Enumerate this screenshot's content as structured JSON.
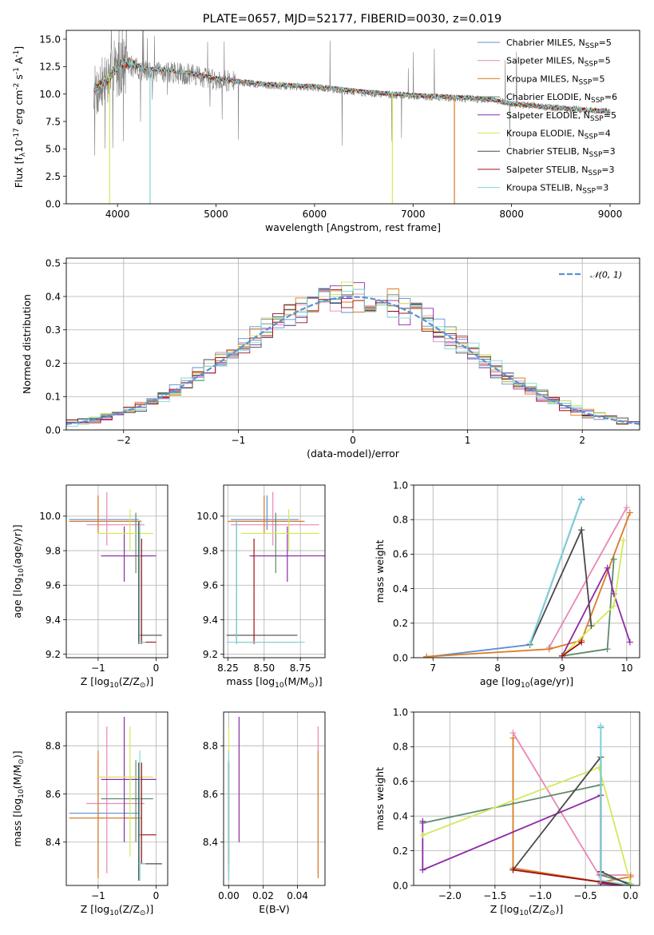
{
  "colors": {
    "Chabrier MILES": "#5b8fd9",
    "Salpeter MILES": "#e887b8",
    "Kroupa MILES": "#d97b24",
    "Chabrier ELODIE": "#5e8b6a",
    "Salpeter ELODIE": "#8e2aa6",
    "Kroupa ELODIE": "#d4e85a",
    "Chabrier STELIB": "#4a4a4a",
    "Salpeter STELIB": "#a01010",
    "Kroupa STELIB": "#7fd6d6",
    "normal": "#5b8fd9",
    "grid": "#b0b0b0"
  },
  "chart_data": [
    {
      "panel": "spectrum",
      "type": "line",
      "title": "PLATE=0657, MJD=52177, FIBERID=0030, z=0.019",
      "xlabel": "wavelength [Angstrom, rest frame]",
      "ylabel": "Flux [f_λ10^{-17} erg cm^{-2} s^{-1} A^{-1}]",
      "xlim": [
        3480,
        9300
      ],
      "ylim": [
        0,
        15.8
      ],
      "xticks": [
        4000,
        5000,
        6000,
        7000,
        8000,
        9000
      ],
      "yticks": [
        0.0,
        2.5,
        5.0,
        7.5,
        10.0,
        12.5,
        15.0
      ],
      "grid": false,
      "legend_position": "top-right",
      "legend": [
        "Chabrier MILES, N_{SSP}=5",
        "Salpeter MILES, N_{SSP}=5",
        "Kroupa MILES, N_{SSP}=5",
        "Chabrier ELODIE, N_{SSP}=6",
        "Salpeter ELODIE, N_{SSP}=5",
        "Kroupa ELODIE, N_{SSP}=4",
        "Chabrier STELIB, N_{SSP}=3",
        "Salpeter STELIB, N_{SSP}=3",
        "Kroupa STELIB, N_{SSP}=3"
      ],
      "data_continuum": [
        [
          3760,
          10.0
        ],
        [
          3850,
          10.8
        ],
        [
          4000,
          12.3
        ],
        [
          4100,
          12.7
        ],
        [
          4300,
          12.0
        ],
        [
          4500,
          12.0
        ],
        [
          4800,
          11.7
        ],
        [
          5000,
          11.3
        ],
        [
          5500,
          10.8
        ],
        [
          6000,
          10.6
        ],
        [
          6500,
          10.1
        ],
        [
          7000,
          9.8
        ],
        [
          7500,
          9.6
        ],
        [
          7800,
          9.5
        ],
        [
          8000,
          9.1
        ],
        [
          8500,
          8.7
        ],
        [
          9000,
          8.4
        ]
      ],
      "model_continuum": [
        [
          3760,
          10.5
        ],
        [
          3900,
          11.3
        ],
        [
          4000,
          12.6
        ],
        [
          4100,
          12.9
        ],
        [
          4300,
          12.3
        ],
        [
          4500,
          12.2
        ],
        [
          4800,
          11.8
        ],
        [
          5000,
          11.4
        ],
        [
          5500,
          10.9
        ],
        [
          6000,
          10.7
        ],
        [
          6500,
          10.2
        ],
        [
          7000,
          9.9
        ],
        [
          7500,
          9.7
        ],
        [
          7800,
          9.5
        ],
        [
          8000,
          9.1
        ],
        [
          8500,
          8.7
        ],
        [
          9000,
          8.4
        ]
      ],
      "gaps": [
        [
          3920,
          "Kroupa ELODIE"
        ],
        [
          4330,
          "Kroupa STELIB"
        ],
        [
          6790,
          "Kroupa ELODIE"
        ],
        [
          7420,
          "Kroupa MILES"
        ]
      ]
    },
    {
      "panel": "residuals",
      "type": "histogram",
      "xlabel": "(data-model)/error",
      "ylabel": "Normed distribution",
      "xlim": [
        -2.5,
        2.5
      ],
      "ylim": [
        0,
        0.515
      ],
      "xticks": [
        -2,
        -1,
        0,
        1,
        2
      ],
      "yticks": [
        0.0,
        0.1,
        0.2,
        0.3,
        0.4,
        0.5
      ],
      "grid": true,
      "legend_position": "top-right",
      "legend": [
        "𝒩(0, 1)"
      ],
      "bin_width": 0.1
    },
    {
      "panel": "age-vs-Z",
      "type": "errorbar",
      "xlabel": "Z [log_{10}(Z/Z_⊙)]",
      "ylabel": "age [log_{10}(age/yr)]",
      "xlim": [
        -1.55,
        0.2
      ],
      "ylim": [
        9.18,
        10.18
      ],
      "xticks": [
        -1,
        0
      ],
      "yticks": [
        9.2,
        9.4,
        9.6,
        9.8,
        10.0
      ],
      "grid": true
    },
    {
      "panel": "age-vs-mass",
      "type": "errorbar",
      "xlabel": "mass [log_{10}(M/M_⊙)]",
      "ylabel": "",
      "xlim": [
        8.22,
        8.92
      ],
      "ylim": [
        9.18,
        10.18
      ],
      "xticks": [
        8.25,
        8.5,
        8.75
      ],
      "yticks": [
        9.2,
        9.4,
        9.6,
        9.8,
        10.0
      ],
      "grid": true
    },
    {
      "panel": "mass-weight-vs-age",
      "type": "line",
      "xlabel": "age [log_{10}(age/yr)]",
      "ylabel": "mass weight",
      "xlim": [
        6.7,
        10.2
      ],
      "ylim": [
        0,
        1.0
      ],
      "xticks": [
        7,
        8,
        9,
        10
      ],
      "yticks": [
        0.0,
        0.2,
        0.4,
        0.6,
        0.8,
        1.0
      ],
      "grid": true,
      "series": [
        {
          "name": "Chabrier MILES",
          "points": [
            [
              6.9,
              0.004
            ],
            [
              8.5,
              0.075
            ],
            [
              9.3,
              0.915
            ]
          ]
        },
        {
          "name": "Salpeter MILES",
          "points": [
            [
              8.8,
              0.06
            ],
            [
              10.0,
              0.87
            ]
          ]
        },
        {
          "name": "Kroupa MILES",
          "points": [
            [
              6.9,
              0.006
            ],
            [
              8.8,
              0.05
            ],
            [
              9.3,
              0.1
            ],
            [
              10.05,
              0.84
            ]
          ]
        },
        {
          "name": "Chabrier ELODIE",
          "points": [
            [
              9.0,
              0.01
            ],
            [
              9.7,
              0.05
            ],
            [
              9.8,
              0.57
            ]
          ]
        },
        {
          "name": "Salpeter ELODIE",
          "points": [
            [
              9.0,
              0.01
            ],
            [
              9.7,
              0.52
            ],
            [
              9.8,
              0.37
            ],
            [
              10.05,
              0.09
            ]
          ]
        },
        {
          "name": "Kroupa ELODIE",
          "points": [
            [
              9.0,
              0.01
            ],
            [
              9.8,
              0.3
            ],
            [
              9.95,
              0.68
            ]
          ]
        },
        {
          "name": "Chabrier STELIB",
          "points": [
            [
              8.5,
              0.075
            ],
            [
              9.3,
              0.74
            ],
            [
              9.45,
              0.185
            ]
          ]
        },
        {
          "name": "Salpeter STELIB",
          "points": [
            [
              9.0,
              0.01
            ],
            [
              9.3,
              0.09
            ]
          ]
        },
        {
          "name": "Kroupa STELIB",
          "points": [
            [
              8.5,
              0.08
            ],
            [
              9.3,
              0.92
            ]
          ]
        }
      ]
    },
    {
      "panel": "mass-vs-Z",
      "type": "errorbar",
      "xlabel": "Z [log_{10}(Z/Z_⊙)]",
      "ylabel": "mass [log_{10}(M/M_⊙)]",
      "xlim": [
        -1.55,
        0.2
      ],
      "ylim": [
        8.22,
        8.94
      ],
      "xticks": [
        -1,
        0
      ],
      "yticks": [
        8.4,
        8.6,
        8.8
      ],
      "grid": true
    },
    {
      "panel": "mass-vs-EBV",
      "type": "errorbar",
      "xlabel": "E(B-V)",
      "ylabel": "",
      "xlim": [
        -0.003,
        0.056
      ],
      "ylim": [
        8.22,
        8.94
      ],
      "xticks": [
        0.0,
        0.02,
        0.04
      ],
      "yticks": [
        8.4,
        8.6,
        8.8
      ],
      "grid": true
    },
    {
      "panel": "mass-weight-vs-Z",
      "type": "line",
      "xlabel": "Z [log_{10}(Z/Z_⊙)]",
      "ylabel": "mass weight",
      "xlim": [
        -2.4,
        0.1
      ],
      "ylim": [
        0,
        1.0
      ],
      "xticks": [
        -2.0,
        -1.5,
        -1.0,
        -0.5,
        0.0
      ],
      "yticks": [
        0.0,
        0.2,
        0.4,
        0.6,
        0.8,
        1.0
      ],
      "grid": true,
      "series": [
        {
          "name": "Chabrier MILES",
          "points": [
            [
              -0.33,
              0.91
            ],
            [
              -0.33,
              0.02
            ],
            [
              0.0,
              0.0
            ]
          ]
        },
        {
          "name": "Salpeter MILES",
          "points": [
            [
              -1.3,
              0.88
            ],
            [
              -0.35,
              0.06
            ],
            [
              0.0,
              0.06
            ]
          ]
        },
        {
          "name": "Kroupa MILES",
          "points": [
            [
              -1.3,
              0.85
            ],
            [
              -1.3,
              0.1
            ],
            [
              -0.33,
              0.02
            ],
            [
              0.0,
              0.05
            ]
          ]
        },
        {
          "name": "Chabrier ELODIE",
          "points": [
            [
              -2.3,
              0.36
            ],
            [
              -0.33,
              0.58
            ],
            [
              -0.33,
              0.06
            ],
            [
              0.0,
              0.01
            ]
          ]
        },
        {
          "name": "Salpeter ELODIE",
          "points": [
            [
              -2.3,
              0.37
            ],
            [
              -2.3,
              0.09
            ],
            [
              -0.33,
              0.52
            ],
            [
              -0.33,
              0.01
            ],
            [
              0.0,
              0.0
            ]
          ]
        },
        {
          "name": "Kroupa ELODIE",
          "points": [
            [
              -2.3,
              0.29
            ],
            [
              -0.35,
              0.68
            ],
            [
              0.0,
              0.01
            ]
          ]
        },
        {
          "name": "Chabrier STELIB",
          "points": [
            [
              -1.3,
              0.09
            ],
            [
              -0.33,
              0.74
            ],
            [
              -0.33,
              0.08
            ],
            [
              0.0,
              0.0
            ]
          ]
        },
        {
          "name": "Salpeter STELIB",
          "points": [
            [
              -1.3,
              0.09
            ],
            [
              -0.33,
              0.02
            ],
            [
              0.0,
              0.0
            ]
          ]
        },
        {
          "name": "Kroupa STELIB",
          "points": [
            [
              -0.33,
              0.92
            ],
            [
              -0.33,
              0.03
            ],
            [
              0.0,
              0.0
            ]
          ]
        }
      ]
    }
  ],
  "fits": [
    {
      "name": "Chabrier MILES",
      "age": 9.98,
      "age_err": [
        9.92,
        10.12
      ],
      "Z": -1.0,
      "Z_err": [
        -1.5,
        -0.3
      ],
      "mass": 8.52,
      "mass_err": [
        8.27,
        8.74
      ],
      "ebv": 0.0
    },
    {
      "name": "Salpeter MILES",
      "age": 9.95,
      "age_err": [
        9.83,
        10.14
      ],
      "Z": -0.85,
      "Z_err": [
        -1.2,
        -0.2
      ],
      "mass": 8.56,
      "mass_err": [
        8.27,
        8.88
      ],
      "ebv": 0.052
    },
    {
      "name": "Kroupa MILES",
      "age": 9.97,
      "age_err": [
        9.9,
        10.12
      ],
      "Z": -1.0,
      "Z_err": [
        -1.5,
        -0.25
      ],
      "mass": 8.5,
      "mass_err": [
        8.25,
        8.78
      ],
      "ebv": 0.052
    },
    {
      "name": "Chabrier ELODIE",
      "age": 9.77,
      "age_err": [
        9.67,
        10.02
      ],
      "Z": -0.35,
      "Z_err": [
        -0.95,
        -0.05
      ],
      "mass": 8.58,
      "mass_err": [
        8.4,
        8.74
      ],
      "ebv": 0.0
    },
    {
      "name": "Salpeter ELODIE",
      "age": 9.77,
      "age_err": [
        9.62,
        9.94
      ],
      "Z": -0.55,
      "Z_err": [
        -0.95,
        0.0
      ],
      "mass": 8.66,
      "mass_err": [
        8.4,
        8.92
      ],
      "ebv": 0.006
    },
    {
      "name": "Kroupa ELODIE",
      "age": 9.9,
      "age_err": [
        9.8,
        10.04
      ],
      "Z": -0.45,
      "Z_err": [
        -1.0,
        -0.05
      ],
      "mass": 8.67,
      "mass_err": [
        8.34,
        8.88
      ],
      "ebv": 0.0
    },
    {
      "name": "Chabrier STELIB",
      "age": 9.31,
      "age_err": [
        9.26,
        9.97
      ],
      "Z": -0.3,
      "Z_err": [
        -0.3,
        0.1
      ],
      "mass": 8.31,
      "mass_err": [
        8.24,
        8.73
      ],
      "ebv": 0.0
    },
    {
      "name": "Salpeter STELIB",
      "age": 9.27,
      "age_err": [
        9.26,
        9.87
      ],
      "Z": -0.25,
      "Z_err": [
        -0.3,
        -0.0
      ],
      "mass": 8.43,
      "mass_err": [
        8.31,
        8.73
      ],
      "ebv": 0.0
    },
    {
      "name": "Kroupa STELIB",
      "age": 9.27,
      "age_err": [
        9.26,
        9.98
      ],
      "Z": -0.28,
      "Z_err": [
        -0.3,
        -0.18
      ],
      "mass": 8.31,
      "mass_err": [
        8.24,
        8.78
      ],
      "ebv": 0.0
    }
  ]
}
